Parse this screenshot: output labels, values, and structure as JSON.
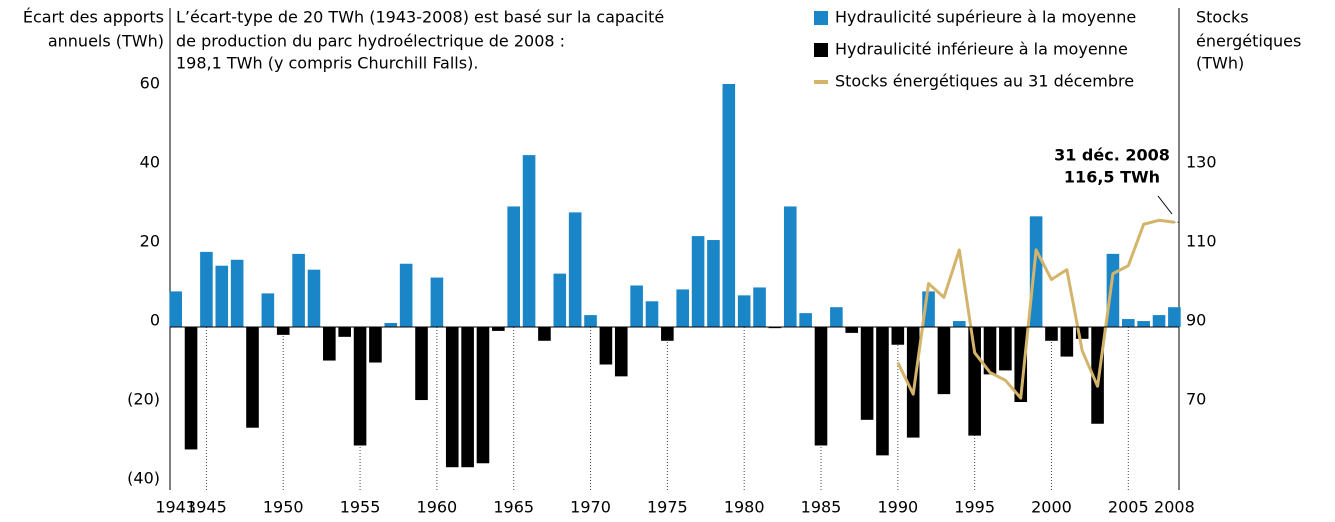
{
  "chart_data": {
    "type": "bar",
    "ylabel": [
      "Écart des apports",
      "annuels (TWh)"
    ],
    "note": [
      "L’écart-type de 20 TWh (1943-2008) est basé sur la capacité",
      "de production du parc hydroélectrique de 2008 :",
      "198,1 TWh (y compris Churchill Falls)."
    ],
    "y2label": [
      "Stocks",
      "énergétiques",
      "(TWh)"
    ],
    "annotation": [
      "31 déc. 2008",
      "116,5 TWh"
    ],
    "x": [
      1943,
      1944,
      1945,
      1946,
      1947,
      1948,
      1949,
      1950,
      1951,
      1952,
      1953,
      1954,
      1955,
      1956,
      1957,
      1958,
      1959,
      1960,
      1961,
      1962,
      1963,
      1964,
      1965,
      1966,
      1967,
      1968,
      1969,
      1970,
      1971,
      1972,
      1973,
      1974,
      1975,
      1976,
      1977,
      1978,
      1979,
      1980,
      1981,
      1982,
      1983,
      1984,
      1985,
      1986,
      1987,
      1988,
      1989,
      1990,
      1991,
      1992,
      1993,
      1994,
      1995,
      1996,
      1997,
      1998,
      1999,
      2000,
      2001,
      2002,
      2003,
      2004,
      2005,
      2006,
      2007,
      2008
    ],
    "xlim": [
      1942.5,
      2008.3
    ],
    "xticks": [
      1943,
      1945,
      1950,
      1955,
      1960,
      1965,
      1970,
      1975,
      1980,
      1985,
      1990,
      1995,
      2000,
      2005,
      2008
    ],
    "ylim": [
      -40,
      62
    ],
    "yticks": [
      {
        "value": -40,
        "label": "(40)"
      },
      {
        "value": -20,
        "label": "(20)"
      },
      0,
      20,
      40,
      60
    ],
    "y2lim": [
      50,
      152
    ],
    "y2ticks": [
      70,
      90,
      110,
      130
    ],
    "series": [
      {
        "name": "Hydraulicité supérieure à la moyenne",
        "color": "#1a86c8",
        "values": [
          9,
          null,
          19,
          15.5,
          17,
          null,
          8.5,
          null,
          18.5,
          14.5,
          null,
          null,
          null,
          null,
          1,
          16,
          null,
          12.5,
          null,
          null,
          null,
          null,
          30.5,
          43.5,
          null,
          13.5,
          29,
          3,
          null,
          null,
          10.5,
          6.5,
          null,
          9.5,
          23,
          22,
          61.5,
          8,
          10,
          null,
          30.5,
          3.5,
          null,
          5,
          null,
          null,
          null,
          null,
          null,
          9,
          null,
          1.5,
          null,
          null,
          null,
          null,
          28,
          null,
          null,
          null,
          null,
          18.5,
          2,
          1.5,
          3,
          5
        ]
      },
      {
        "name": "Hydraulicité inférieure à la moyenne",
        "color": "#000000",
        "values": [
          null,
          -31,
          null,
          null,
          null,
          -25.5,
          null,
          -2,
          null,
          null,
          -8.5,
          -2.5,
          -30,
          -9,
          null,
          null,
          -18.5,
          null,
          -35.5,
          -35.5,
          -34.5,
          -1,
          null,
          null,
          -3.5,
          null,
          null,
          null,
          -9.5,
          -12.5,
          null,
          null,
          -3.5,
          null,
          null,
          null,
          null,
          null,
          null,
          -0.3,
          null,
          null,
          -30,
          null,
          -1.5,
          -23.5,
          -32.5,
          -4.5,
          -28,
          null,
          -17,
          null,
          -27.5,
          -12,
          -11,
          -19,
          null,
          -3.5,
          -7.5,
          -3,
          -24.5,
          null,
          null,
          null,
          null,
          null
        ]
      },
      {
        "name": "Stocks énergétiques au 31 décembre",
        "color": "#d4b46a",
        "type": "line",
        "axis": "y2",
        "values": [
          null,
          null,
          null,
          null,
          null,
          null,
          null,
          null,
          null,
          null,
          null,
          null,
          null,
          null,
          null,
          null,
          null,
          null,
          null,
          null,
          null,
          null,
          null,
          null,
          null,
          null,
          null,
          null,
          null,
          null,
          null,
          null,
          null,
          null,
          null,
          null,
          null,
          null,
          null,
          null,
          null,
          null,
          null,
          null,
          null,
          null,
          null,
          81,
          73,
          101,
          97.5,
          109.5,
          83.5,
          78.5,
          76.5,
          72,
          109.5,
          102,
          104.5,
          84,
          75,
          103.5,
          105.5,
          116,
          117,
          116.5
        ]
      }
    ]
  }
}
